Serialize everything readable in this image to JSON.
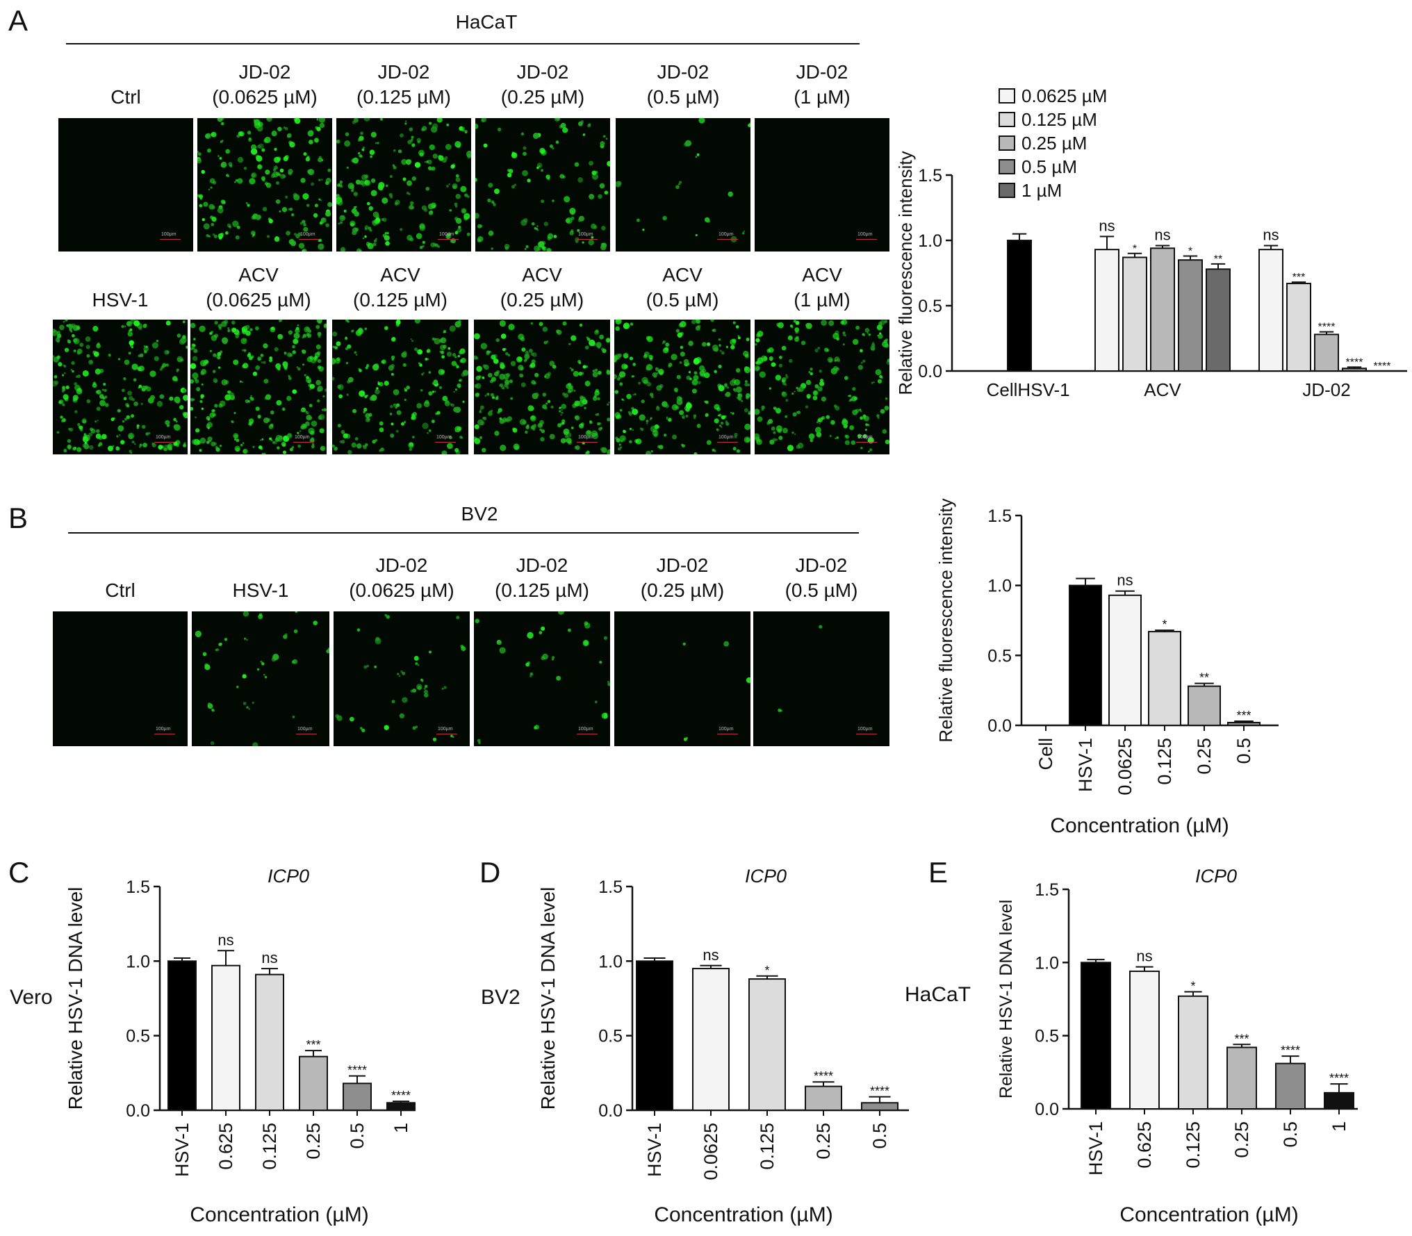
{
  "panels": {
    "A": {
      "letter": "A",
      "header": "HaCaT",
      "row1_labels": [
        [
          "Ctrl"
        ],
        [
          "JD-02",
          "(0.0625 µM)"
        ],
        [
          "JD-02",
          "(0.125 µM)"
        ],
        [
          "JD-02",
          "(0.25 µM)"
        ],
        [
          "JD-02",
          "(0.5 µM)"
        ],
        [
          "JD-02",
          "(1 µM)"
        ]
      ],
      "row2_labels": [
        [
          "HSV-1"
        ],
        [
          "ACV",
          "(0.0625 µM)"
        ],
        [
          "ACV",
          "(0.125 µM)"
        ],
        [
          "ACV",
          "(0.25 µM)"
        ],
        [
          "ACV",
          "(0.5 µM)"
        ],
        [
          "ACV",
          "(1 µM)"
        ]
      ],
      "row1_density": [
        0.0,
        0.75,
        0.75,
        0.45,
        0.08,
        0.0
      ],
      "row2_density": [
        1.0,
        1.0,
        0.75,
        0.9,
        0.9,
        0.8
      ],
      "scale_text": "100µm"
    },
    "B": {
      "letter": "B",
      "header": "BV2",
      "labels": [
        [
          "Ctrl"
        ],
        [
          "HSV-1"
        ],
        [
          "JD-02",
          "(0.0625 µM)"
        ],
        [
          "JD-02",
          "(0.125 µM)"
        ],
        [
          "JD-02",
          "(0.25 µM)"
        ],
        [
          "JD-02",
          "(0.5 µM)"
        ]
      ],
      "density": [
        0.0,
        0.15,
        0.15,
        0.12,
        0.02,
        0.01
      ],
      "scale_text": "100µm"
    },
    "C": {
      "letter": "C",
      "side_label": "Vero"
    },
    "D": {
      "letter": "D",
      "side_label": "BV2"
    },
    "E": {
      "letter": "E",
      "side_label": "HaCaT"
    }
  },
  "chart_data": [
    {
      "id": "A",
      "type": "bar",
      "ylabel": "Relative fluorescence intensity",
      "ylim": [
        0,
        1.5
      ],
      "yticks": [
        "0.0",
        "0.5",
        "1.0",
        "1.5"
      ],
      "legend_placement": "top-left",
      "legend": [
        "0.0625 µM",
        "0.125 µM",
        "0.25 µM",
        "0.5 µM",
        "1 µM"
      ],
      "legend_colors": [
        "#f4f4f4",
        "#dcdcdc",
        "#b8b8b8",
        "#8e8e8e",
        "#6a6a6a"
      ],
      "groups": [
        {
          "label": "Cell",
          "bars": [
            {
              "value": 0,
              "error": 0,
              "color": "#000000",
              "sig": ""
            }
          ]
        },
        {
          "label": "HSV-1",
          "bars": [
            {
              "value": 1.0,
              "error": 0.05,
              "color": "#000000",
              "sig": ""
            }
          ]
        },
        {
          "label": "ACV",
          "bars": [
            {
              "value": 0.93,
              "error": 0.1,
              "color": "#f4f4f4",
              "sig": "ns"
            },
            {
              "value": 0.87,
              "error": 0.03,
              "color": "#dcdcdc",
              "sig": "*"
            },
            {
              "value": 0.94,
              "error": 0.02,
              "color": "#b8b8b8",
              "sig": "ns"
            },
            {
              "value": 0.85,
              "error": 0.03,
              "color": "#8e8e8e",
              "sig": "*"
            },
            {
              "value": 0.78,
              "error": 0.04,
              "color": "#6a6a6a",
              "sig": "**"
            }
          ]
        },
        {
          "label": "JD-02",
          "bars": [
            {
              "value": 0.93,
              "error": 0.03,
              "color": "#f4f4f4",
              "sig": "ns"
            },
            {
              "value": 0.67,
              "error": 0.01,
              "color": "#dcdcdc",
              "sig": "***"
            },
            {
              "value": 0.28,
              "error": 0.02,
              "color": "#b8b8b8",
              "sig": "****"
            },
            {
              "value": 0.02,
              "error": 0.01,
              "color": "#8e8e8e",
              "sig": "****"
            },
            {
              "value": 0.0,
              "error": 0.0,
              "color": "#6a6a6a",
              "sig": "****"
            }
          ]
        }
      ]
    },
    {
      "id": "B",
      "type": "bar",
      "ylabel": "Relative fluorescence intensity",
      "xlabel": "Concentration (µM)",
      "ylim": [
        0,
        1.5
      ],
      "yticks": [
        "0.0",
        "0.5",
        "1.0",
        "1.5"
      ],
      "categories": [
        "Cell",
        "HSV-1",
        "0.0625",
        "0.125",
        "0.25",
        "0.5"
      ],
      "values": [
        0,
        1.0,
        0.93,
        0.67,
        0.28,
        0.02
      ],
      "errors": [
        0,
        0.05,
        0.03,
        0.01,
        0.02,
        0.01
      ],
      "colors": [
        "#000000",
        "#000000",
        "#f4f4f4",
        "#dcdcdc",
        "#b8b8b8",
        "#8e8e8e"
      ],
      "sig": [
        "",
        "",
        "ns",
        "*",
        "**",
        "***"
      ]
    },
    {
      "id": "C",
      "type": "bar",
      "title": "ICP0",
      "ylabel": "Relative HSV-1 DNA level",
      "xlabel": "Concentration (µM)",
      "ylim": [
        0,
        1.5
      ],
      "yticks": [
        "0.0",
        "0.5",
        "1.0",
        "1.5"
      ],
      "categories": [
        "HSV-1",
        "0.625",
        "0.125",
        "0.25",
        "0.5",
        "1"
      ],
      "values": [
        1.0,
        0.97,
        0.91,
        0.36,
        0.18,
        0.05
      ],
      "errors": [
        0.02,
        0.1,
        0.04,
        0.04,
        0.05,
        0.01
      ],
      "colors": [
        "#000000",
        "#f4f4f4",
        "#dcdcdc",
        "#b8b8b8",
        "#8e8e8e",
        "#111111"
      ],
      "sig": [
        "",
        "ns",
        "ns",
        "***",
        "****",
        "****"
      ]
    },
    {
      "id": "D",
      "type": "bar",
      "title": "ICP0",
      "ylabel": "Relative HSV-1 DNA level",
      "xlabel": "Concentration (µM)",
      "ylim": [
        0,
        1.5
      ],
      "yticks": [
        "0.0",
        "0.5",
        "1.0",
        "1.5"
      ],
      "categories": [
        "HSV-1",
        "0.0625",
        "0.125",
        "0.25",
        "0.5"
      ],
      "values": [
        1.0,
        0.95,
        0.88,
        0.16,
        0.05
      ],
      "errors": [
        0.02,
        0.02,
        0.02,
        0.03,
        0.04
      ],
      "colors": [
        "#000000",
        "#f4f4f4",
        "#dcdcdc",
        "#b8b8b8",
        "#8e8e8e"
      ],
      "sig": [
        "",
        "ns",
        "*",
        "****",
        "****"
      ]
    },
    {
      "id": "E",
      "type": "bar",
      "title": "ICP0",
      "ylabel": "Relative HSV-1 DNA level",
      "xlabel": "Concentration (µM)",
      "ylim": [
        0,
        1.5
      ],
      "yticks": [
        "0.0",
        "0.5",
        "1.0",
        "1.5"
      ],
      "categories": [
        "HSV-1",
        "0.625",
        "0.125",
        "0.25",
        "0.5",
        "1"
      ],
      "values": [
        1.0,
        0.94,
        0.77,
        0.42,
        0.31,
        0.11
      ],
      "errors": [
        0.02,
        0.03,
        0.03,
        0.02,
        0.05,
        0.06
      ],
      "colors": [
        "#000000",
        "#f4f4f4",
        "#dcdcdc",
        "#b8b8b8",
        "#8e8e8e",
        "#111111"
      ],
      "sig": [
        "",
        "ns",
        "*",
        "***",
        "****",
        "****"
      ]
    }
  ]
}
